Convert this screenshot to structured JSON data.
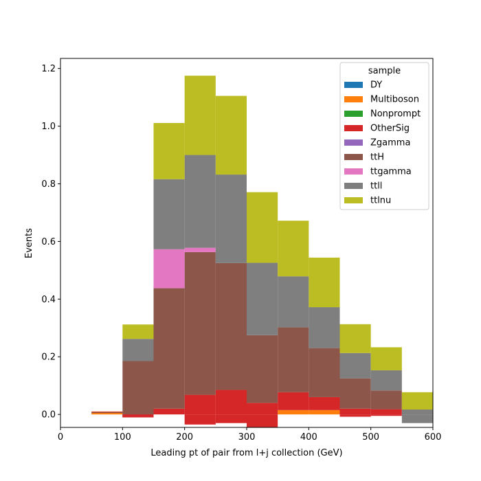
{
  "chart_data": {
    "type": "bar",
    "stacked": true,
    "histogram": true,
    "xlabel": "Leading pt of pair from l+j collection (GeV)",
    "ylabel": "Events",
    "xlim": [
      0,
      600
    ],
    "ylim": [
      -0.045,
      1.235
    ],
    "xticks": [
      0,
      100,
      200,
      300,
      400,
      500,
      600
    ],
    "yticks": [
      0.0,
      0.2,
      0.4,
      0.6,
      0.8,
      1.0,
      1.2
    ],
    "bin_edges": [
      50,
      100,
      150,
      200,
      250,
      300,
      350,
      400,
      450,
      500,
      550,
      600
    ],
    "legend_title": "sample",
    "legend_position": "top-right",
    "grid": false,
    "series": [
      {
        "name": "DY",
        "color": "#1f77b4",
        "values": [
          0,
          0,
          0,
          0,
          0,
          0,
          0,
          0,
          0,
          0,
          0
        ]
      },
      {
        "name": "Multiboson",
        "color": "#ff7f0e",
        "values": [
          0.01,
          0,
          0,
          0,
          0,
          0,
          0.015,
          0.015,
          0,
          0,
          0
        ]
      },
      {
        "name": "Nonprompt",
        "color": "#2ca02c",
        "values": [
          0,
          0,
          0,
          0,
          0,
          0,
          0,
          0,
          0,
          0,
          0
        ]
      },
      {
        "name": "OtherSig",
        "color": "#d62728",
        "values": [
          -0.002,
          -0.01,
          0.02,
          0.068,
          0.085,
          0.04,
          0.062,
          0.045,
          0.02,
          0.018,
          0
        ]
      },
      {
        "name": "Zgamma",
        "color": "#9467bd",
        "values": [
          0,
          0,
          0,
          0,
          0,
          0,
          0,
          0,
          0,
          0,
          0
        ]
      },
      {
        "name": "ttH",
        "color": "#8c564b",
        "values": [
          -0.003,
          0.195,
          0.418,
          0.495,
          0.44,
          0.235,
          0.225,
          0.17,
          0.105,
          0.065,
          0
        ]
      },
      {
        "name": "ttgamma",
        "color": "#e377c2",
        "values": [
          0,
          0,
          0.135,
          0.015,
          0,
          0,
          0,
          0,
          0,
          0,
          0
        ]
      },
      {
        "name": "ttll",
        "color": "#7f7f7f",
        "values": [
          0,
          0.077,
          0.243,
          0.322,
          0.307,
          0.251,
          0.177,
          0.142,
          0.088,
          0.07,
          0.017
        ]
      },
      {
        "name": "ttlnu",
        "color": "#bcbd22",
        "values": [
          0,
          0.05,
          0.195,
          0.275,
          0.273,
          0.245,
          0.193,
          0.172,
          0.1,
          0.08,
          0.06
        ]
      }
    ],
    "negative_segments": [
      {
        "name": "OtherSig",
        "values": [
          0,
          -0.01,
          0,
          0,
          0,
          0,
          0,
          0,
          0,
          0,
          0
        ]
      },
      {
        "name": "OtherSig",
        "values": [
          0,
          0,
          0,
          -0.035,
          -0.03,
          -0.045,
          0,
          0,
          -0.008,
          -0.005,
          0
        ]
      },
      {
        "name": "ttll",
        "values": [
          0,
          0,
          0,
          0,
          0,
          0,
          0,
          0,
          0,
          0,
          -0.03
        ]
      }
    ]
  }
}
